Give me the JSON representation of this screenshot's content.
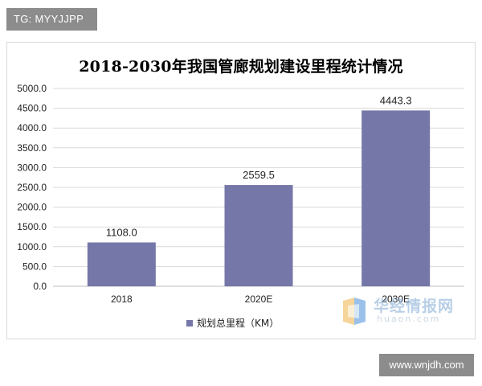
{
  "overlay_tag": "TG: MYYJJPP",
  "site_tag": "www.wnjdh.com",
  "watermark": {
    "cn": "华经情报网",
    "en": "huaon.com"
  },
  "chart_data": {
    "type": "bar",
    "title": "2018-2030年我国管廊规划建设里程统计情况",
    "categories": [
      "2018",
      "2020E",
      "2030E"
    ],
    "series": [
      {
        "name": "规划总里程（KM）",
        "values": [
          1108.0,
          2559.5,
          4443.3
        ],
        "color": "#7577a8"
      }
    ],
    "data_labels": [
      "1108.0",
      "2559.5",
      "4443.3"
    ],
    "y_ticks": [
      "0.0",
      "500.0",
      "1000.0",
      "1500.0",
      "2000.0",
      "2500.0",
      "3000.0",
      "3500.0",
      "4000.0",
      "4500.0",
      "5000.0"
    ],
    "ylim": [
      0,
      5000
    ],
    "grid": true,
    "legend_position": "bottom"
  }
}
